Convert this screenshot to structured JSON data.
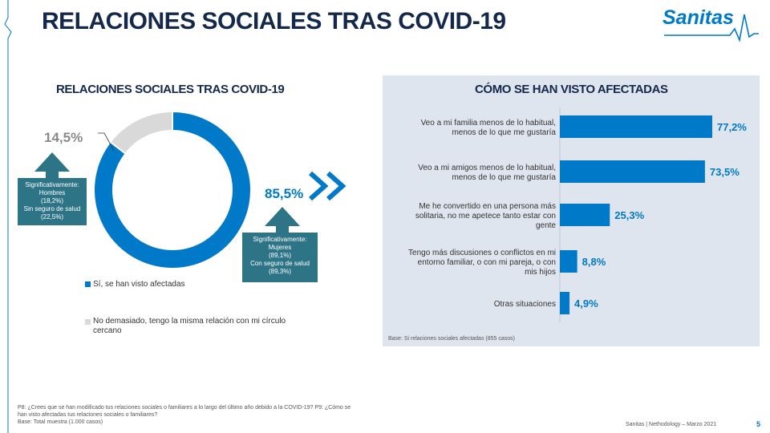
{
  "header": {
    "title": "RELACIONES SOCIALES TRAS COVID-19",
    "logo": "Sanitas"
  },
  "left_section": {
    "title": "RELACIONES SOCIALES TRAS COVID-19",
    "pct_no": "14,5%",
    "pct_yes": "85,5%",
    "callout_men": [
      "Significativamente:",
      "Hombres",
      "(18,2%)",
      "Sin seguro de salud",
      "(22,5%)"
    ],
    "callout_women": [
      "Significativamente:",
      "Mujeres",
      "(89,1%)",
      "Con seguro de salud",
      "(89,3%)"
    ],
    "legend": [
      {
        "label": "Sí, se han visto afectadas",
        "color": "#0079c8"
      },
      {
        "label": "No demasiado, tengo la misma relación con mi círculo cercano",
        "color": "#d9d9d9"
      }
    ]
  },
  "right_section": {
    "title": "CÓMO SE HAN VISTO AFECTADAS",
    "base": "Base: Si relaciones sociales afectadas (855 casos)"
  },
  "footnote": {
    "line1": "P8: ¿Crees que se han modificado tus relaciones sociales o familiares a lo largo del último año debido a la COVID-19? P9: ¿Cómo se",
    "line2": "han visto afectadas tus relaciones sociales o familiares?",
    "line3": "Base: Total muestra (1.000 casos)"
  },
  "footer": {
    "source": "Sanitas | Nethodology – Marzo 2021",
    "page": "5"
  },
  "colors": {
    "accent": "#0079c8",
    "callout": "#2e7487",
    "panel": "#dfe5ee",
    "grey": "#d9d9d9",
    "title": "#14284b"
  },
  "chart_data": [
    {
      "type": "pie",
      "categories": [
        "Sí, se han visto afectadas",
        "No demasiado, tengo la misma relación con mi círculo cercano"
      ],
      "values": [
        85.5,
        14.5
      ],
      "title": "RELACIONES SOCIALES TRAS COVID-19"
    },
    {
      "type": "bar",
      "orientation": "horizontal",
      "title": "CÓMO SE HAN VISTO AFECTADAS",
      "categories": [
        [
          "Veo a mi familia menos de lo habitual,",
          "menos de lo que me gustaría"
        ],
        [
          "Veo a mi amigos menos de lo habitual,",
          "menos de lo que me gustaría"
        ],
        [
          "Me he convertido en una persona más",
          "solitaria, no me apetece tanto estar con",
          "gente"
        ],
        [
          "Tengo más discusiones o conflictos en mi",
          "entorno familiar, o con mi pareja, o con",
          "mis hijos"
        ],
        [
          "Otras situaciones"
        ]
      ],
      "values": [
        77.2,
        73.5,
        25.3,
        8.8,
        4.9
      ],
      "value_labels": [
        "77,2%",
        "73,5%",
        "25,3%",
        "8,8%",
        "4,9%"
      ],
      "xlim": [
        0,
        100
      ]
    }
  ]
}
